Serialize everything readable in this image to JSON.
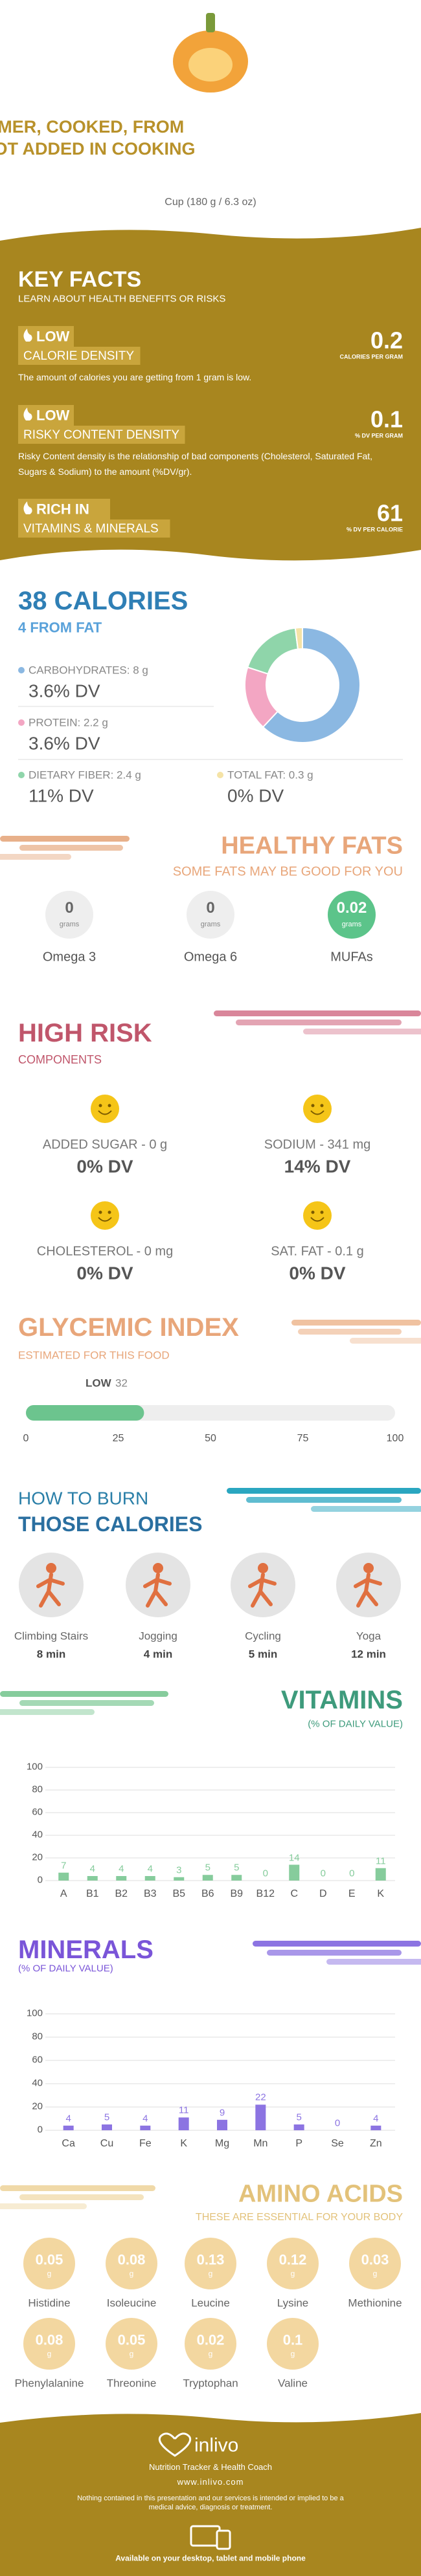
{
  "header": {
    "title": "SQUASH, SUMMER, COOKED, FROM FROZEN, FAT NOT ADDED IN COOKING",
    "serving": "Cup (180 g / 6.3 oz)"
  },
  "key_facts": {
    "title": "KEY FACTS",
    "subtitle": "LEARN ABOUT HEALTH BENEFITS OR RISKS",
    "items": [
      {
        "level": "LOW",
        "label": "CALORIE DENSITY",
        "value": 0.2,
        "unit": "CALORIES PER GRAM",
        "description": "The amount of calories you are getting from 1 gram is low."
      },
      {
        "level": "LOW",
        "label": "RISKY CONTENT DENSITY",
        "value": 0.1,
        "unit": "% DV PER GRAM",
        "description": "Risky Content density is the relationship of bad components (Cholesterol, Saturated Fat, Sugars & Sodium) to the amount (%DV/gr)."
      },
      {
        "level": "RICH IN",
        "label": "VITAMINS & MINERALS",
        "value": 61,
        "unit": "% DV PER CALORIE"
      }
    ]
  },
  "calories": {
    "title": "38 CALORIES",
    "subtitle": "4 FROM FAT",
    "items": [
      {
        "label": "CARBOHYDRATES: 8 g",
        "dv": "3.6% DV"
      },
      {
        "label": "PROTEIN: 2.2 g",
        "dv": "3.6% DV"
      },
      {
        "label": "DIETARY FIBER: 2.4 g",
        "dv": "11% DV"
      },
      {
        "label": "TOTAL FAT: 0.3 g",
        "dv": "0% DV"
      }
    ]
  },
  "healthy_fats": {
    "title": "HEALTHY FATS",
    "subtitle": "SOME FATS MAY BE GOOD FOR YOU",
    "items": [
      {
        "value": 0,
        "unit": "grams",
        "label": "Omega 3"
      },
      {
        "value": 0,
        "unit": "grams",
        "label": "Omega 6"
      },
      {
        "value": 0.02,
        "unit": "grams",
        "label": "MUFAs"
      }
    ]
  },
  "high_risk": {
    "title": "HIGH RISK",
    "subtitle": "COMPONENTS",
    "items": [
      {
        "label": "ADDED SUGAR - 0 g",
        "dv": "0% DV"
      },
      {
        "label": "SODIUM - 341 mg",
        "dv": "14% DV"
      },
      {
        "label": "CHOLESTEROL - 0 mg",
        "dv": "0% DV"
      },
      {
        "label": "SAT. FAT - 0.1 g",
        "dv": "0% DV"
      }
    ]
  },
  "glycemic": {
    "title": "GLYCEMIC INDEX",
    "subtitle": "ESTIMATED FOR THIS FOOD",
    "level": "LOW",
    "value": 32,
    "xlim": [
      0,
      100
    ],
    "xticks": [
      0,
      25,
      50,
      75,
      100
    ]
  },
  "burn": {
    "title": "HOW TO BURN",
    "subtitle": "THOSE CALORIES",
    "items": [
      {
        "activity": "Climbing Stairs",
        "time": "8 min"
      },
      {
        "activity": "Jogging",
        "time": "4 min"
      },
      {
        "activity": "Cycling",
        "time": "5 min"
      },
      {
        "activity": "Yoga",
        "time": "12 min"
      }
    ]
  },
  "chart_data": [
    {
      "type": "pie",
      "values": [
        62,
        18,
        18,
        2
      ],
      "colors": [
        "#8bb8e2",
        "#f3a6c3",
        "#8fd5aa",
        "#f5e3a6"
      ]
    },
    {
      "type": "bar",
      "title": "VITAMINS",
      "subtitle": "(% OF DAILY VALUE)",
      "categories": [
        "A",
        "B1",
        "B2",
        "B3",
        "B5",
        "B6",
        "B9",
        "B12",
        "C",
        "D",
        "E",
        "K"
      ],
      "values": [
        7,
        4,
        4,
        4,
        3,
        5,
        5,
        0,
        14,
        0,
        0,
        11
      ],
      "color": "#86cc9c",
      "title_color": "#3e9b7c",
      "ylim": [
        0,
        100
      ],
      "yticks": [
        0,
        20,
        40,
        60,
        80,
        100
      ],
      "grid": true
    },
    {
      "type": "bar",
      "title": "MINERALS",
      "subtitle": "(% OF DAILY VALUE)",
      "categories": [
        "Ca",
        "Cu",
        "Fe",
        "K",
        "Mg",
        "Mn",
        "P",
        "Se",
        "Zn"
      ],
      "values": [
        4,
        5,
        4,
        11,
        9,
        22,
        5,
        0,
        4
      ],
      "color": "#8c74e2",
      "title_color": "#7a55d8",
      "ylim": [
        0,
        100
      ],
      "yticks": [
        0,
        20,
        40,
        60,
        80,
        100
      ],
      "grid": true
    }
  ],
  "amino_acids": {
    "title": "AMINO ACIDS",
    "subtitle": "THESE ARE ESSENTIAL FOR YOUR BODY",
    "items": [
      {
        "value": 0.05,
        "unit": "g",
        "label": "Histidine"
      },
      {
        "value": 0.08,
        "unit": "g",
        "label": "Isoleucine"
      },
      {
        "value": 0.13,
        "unit": "g",
        "label": "Leucine"
      },
      {
        "value": 0.12,
        "unit": "g",
        "label": "Lysine"
      },
      {
        "value": 0.03,
        "unit": "g",
        "label": "Methionine"
      },
      {
        "value": 0.08,
        "unit": "g",
        "label": "Phenylalanine"
      },
      {
        "value": 0.05,
        "unit": "g",
        "label": "Threonine"
      },
      {
        "value": 0.02,
        "unit": "g",
        "label": "Tryptophan"
      },
      {
        "value": 0.1,
        "unit": "g",
        "label": "Valine"
      }
    ]
  },
  "footer": {
    "brand": "inlivo",
    "tagline": "Nutrition Tracker & Health Coach",
    "url": "www.inlivo.com",
    "disclaimer": "Nothing contained in this presentation and our services is intended or implied to be a medical advice, diagnosis or treatment.",
    "availability": "Available on your desktop, tablet and mobile phone"
  }
}
